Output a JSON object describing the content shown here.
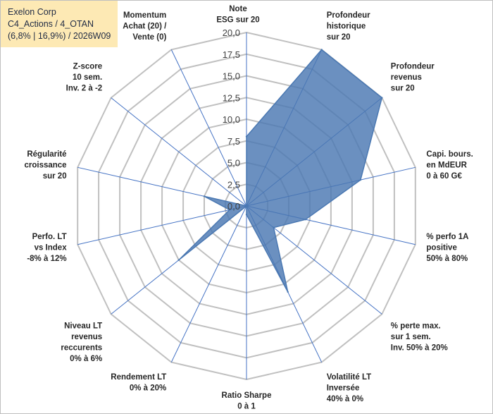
{
  "header": {
    "company": "Exelon Corp",
    "portfolio": "C4_Actions / 4_OTAN",
    "stats": "(6,8% | 16,9%) / 2026W09"
  },
  "chart_data": {
    "type": "radar",
    "title": "Exelon Corp",
    "subtitle": "C4_Actions / 4_OTAN (6,8% | 16,9%) / 2026W09",
    "rmin": 0,
    "rmax": 20,
    "step": 2.5,
    "ticks": [
      "0,0",
      "2,5",
      "5,0",
      "7,5",
      "10,0",
      "12,5",
      "15,0",
      "17,5",
      "20,0"
    ],
    "axes": [
      [
        "Note",
        "ESG sur 20"
      ],
      [
        "Profondeur",
        "historique",
        "sur 20"
      ],
      [
        "Profondeur",
        "revenus",
        "sur 20"
      ],
      [
        "Capi. bours.",
        "en MdEUR",
        "0 à 60 G€"
      ],
      [
        "% perfo 1A",
        "positive",
        "50% à 80%"
      ],
      [
        "% perte max.",
        "sur 1 sem.",
        "Inv. 50% à 20%"
      ],
      [
        "Volatilité LT",
        "Inversée",
        "40% à 0%"
      ],
      [
        "Ratio Sharpe",
        "0 à 1"
      ],
      [
        "Rendement LT",
        "0% à 20%"
      ],
      [
        "Niveau LT",
        "revenus",
        "reccurents",
        "0% à 6%"
      ],
      [
        "Perfo. LT",
        "vs Index",
        "-8% à 12%"
      ],
      [
        "Régularité",
        "croissance",
        "sur 20"
      ],
      [
        "Z-score",
        "10 sem.",
        "Inv. 2 à -2"
      ],
      [
        "Momentum",
        "Achat (20) /",
        "Vente (0)"
      ]
    ],
    "series": [
      {
        "name": "Exelon Corp",
        "values": [
          8,
          20,
          20,
          13.5,
          7,
          4,
          11,
          1,
          0,
          10,
          2,
          5,
          0,
          0
        ],
        "color": "#4a78b2"
      }
    ],
    "colors": {
      "grid": "#c0c0c0",
      "spoke": "#4472c4",
      "fill": "#4a78b2"
    }
  }
}
